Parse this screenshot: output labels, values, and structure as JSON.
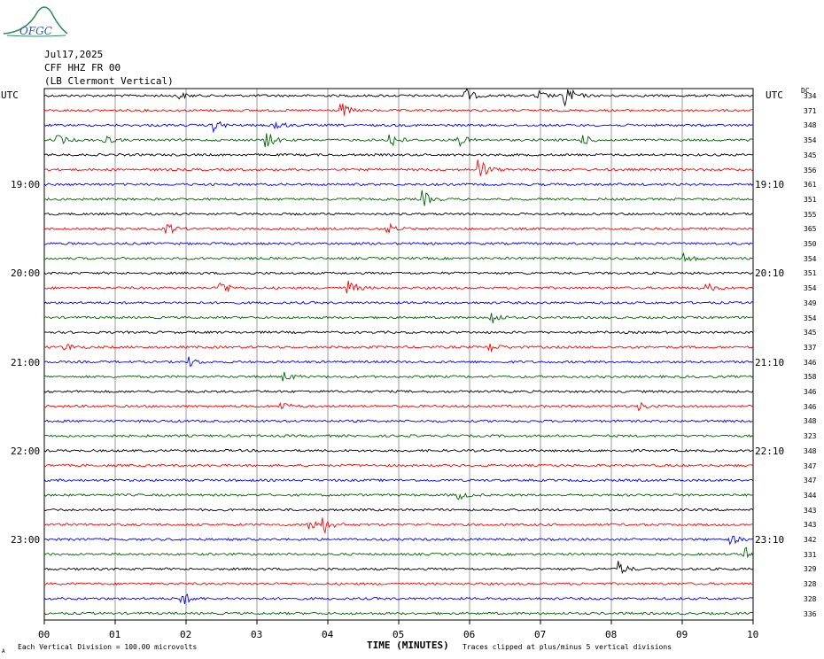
{
  "logo": {
    "text": "OFGC"
  },
  "header": {
    "date": "Jul17,2025",
    "station_line": "CFF HHZ FR 00",
    "location_line": "(LB  Clermont Vertical)"
  },
  "utc_left": "UTC",
  "utc_right": "UTC",
  "dc_label": "DC",
  "footer": {
    "left_note": "Each Vertical Division =  100.00 microvolts",
    "axis_title": "TIME (MINUTES)",
    "right_note": "Traces clipped at plus/minus 5 vertical divisions",
    "corner_mark": "A"
  },
  "colors": {
    "cycle": [
      "#000000",
      "#ff0000",
      "#0000ff",
      "#006600"
    ],
    "grid": "#7f7f7f",
    "frame": "#000000"
  },
  "chart_data": {
    "type": "line",
    "title": "",
    "xlabel": "TIME (MINUTES)",
    "ylabel": "",
    "xlim": [
      0,
      10
    ],
    "x_ticks": [
      "00",
      "01",
      "02",
      "03",
      "04",
      "05",
      "06",
      "07",
      "08",
      "09",
      "10"
    ],
    "minutes_per_line": 10,
    "trace_count": 36,
    "left_time_labels": [
      {
        "line": 6,
        "text": "19:00"
      },
      {
        "line": 12,
        "text": "20:00"
      },
      {
        "line": 18,
        "text": "21:00"
      },
      {
        "line": 24,
        "text": "22:00"
      },
      {
        "line": 30,
        "text": "23:00"
      }
    ],
    "right_time_labels": [
      {
        "line": 6,
        "text": "19:10"
      },
      {
        "line": 12,
        "text": "20:10"
      },
      {
        "line": 18,
        "text": "21:10"
      },
      {
        "line": 24,
        "text": "22:10"
      },
      {
        "line": 30,
        "text": "23:10"
      }
    ],
    "dc_offsets": [
      334,
      371,
      348,
      354,
      345,
      356,
      361,
      351,
      355,
      365,
      350,
      354,
      351,
      354,
      349,
      354,
      345,
      337,
      346,
      358,
      346,
      346,
      348,
      323,
      348,
      347,
      347,
      344,
      343,
      343,
      342,
      331,
      329,
      328,
      328,
      336
    ],
    "events": [
      {
        "line": 0,
        "minute": 1.9,
        "amp": 4
      },
      {
        "line": 0,
        "minute": 5.95,
        "amp": 8
      },
      {
        "line": 0,
        "minute": 6.95,
        "amp": 7
      },
      {
        "line": 0,
        "minute": 7.35,
        "amp": 16
      },
      {
        "line": 1,
        "minute": 4.2,
        "amp": 8
      },
      {
        "line": 2,
        "minute": 2.4,
        "amp": 7
      },
      {
        "line": 2,
        "minute": 3.25,
        "amp": 7
      },
      {
        "line": 3,
        "minute": 0.2,
        "amp": 6
      },
      {
        "line": 3,
        "minute": 0.85,
        "amp": 6
      },
      {
        "line": 3,
        "minute": 3.15,
        "amp": 9
      },
      {
        "line": 3,
        "minute": 4.9,
        "amp": 9
      },
      {
        "line": 3,
        "minute": 5.85,
        "amp": 7
      },
      {
        "line": 3,
        "minute": 7.6,
        "amp": 6
      },
      {
        "line": 5,
        "minute": 6.15,
        "amp": 12
      },
      {
        "line": 7,
        "minute": 5.35,
        "amp": 9
      },
      {
        "line": 9,
        "minute": 1.75,
        "amp": 6
      },
      {
        "line": 9,
        "minute": 4.85,
        "amp": 6
      },
      {
        "line": 11,
        "minute": 9.05,
        "amp": 6
      },
      {
        "line": 13,
        "minute": 2.5,
        "amp": 9
      },
      {
        "line": 13,
        "minute": 4.3,
        "amp": 9
      },
      {
        "line": 13,
        "minute": 9.35,
        "amp": 5
      },
      {
        "line": 15,
        "minute": 6.3,
        "amp": 9
      },
      {
        "line": 17,
        "minute": 0.3,
        "amp": 5
      },
      {
        "line": 17,
        "minute": 6.3,
        "amp": 5
      },
      {
        "line": 18,
        "minute": 2.05,
        "amp": 5
      },
      {
        "line": 19,
        "minute": 3.4,
        "amp": 5
      },
      {
        "line": 21,
        "minute": 3.35,
        "amp": 5
      },
      {
        "line": 21,
        "minute": 8.4,
        "amp": 4
      },
      {
        "line": 27,
        "minute": 5.85,
        "amp": 5
      },
      {
        "line": 29,
        "minute": 3.75,
        "amp": 8
      },
      {
        "line": 29,
        "minute": 3.95,
        "amp": 8
      },
      {
        "line": 30,
        "minute": 9.7,
        "amp": 5
      },
      {
        "line": 31,
        "minute": 9.9,
        "amp": 8
      },
      {
        "line": 32,
        "minute": 8.1,
        "amp": 9
      },
      {
        "line": 34,
        "minute": 1.95,
        "amp": 8
      }
    ]
  }
}
